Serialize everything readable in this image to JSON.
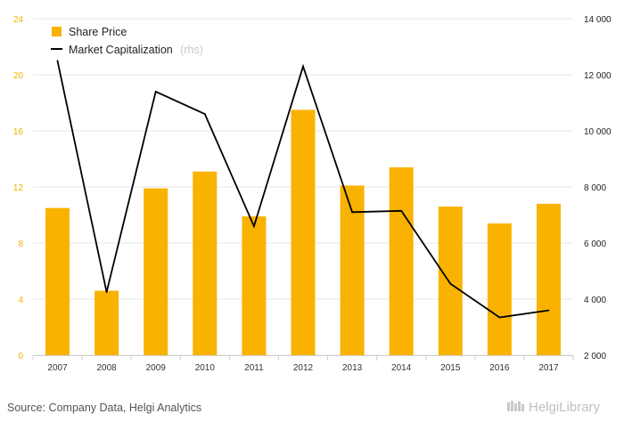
{
  "colors": {
    "bar": "#f9b200",
    "line": "#000000",
    "grid": "#e6e6e6",
    "left_axis_text": "#f2b200",
    "right_axis_text": "#222222"
  },
  "chart_data": {
    "type": "bar",
    "title": "",
    "categories": [
      "2007",
      "2008",
      "2009",
      "2010",
      "2011",
      "2012",
      "2013",
      "2014",
      "2015",
      "2016",
      "2017"
    ],
    "series": [
      {
        "name": "Share Price",
        "type": "bar",
        "axis": "left",
        "values": [
          10.5,
          4.6,
          11.9,
          13.1,
          9.9,
          17.5,
          12.1,
          13.4,
          10.6,
          9.4,
          10.8
        ]
      },
      {
        "name": "Market Capitalization",
        "suffix": "(rhs)",
        "type": "line",
        "axis": "right",
        "values": [
          12500,
          4250,
          11400,
          10600,
          6600,
          12300,
          7100,
          7150,
          4550,
          3350,
          3600
        ]
      }
    ],
    "y_left": {
      "min": 0,
      "max": 24,
      "ticks": [
        "0",
        "4",
        "8",
        "12",
        "16",
        "20",
        "24"
      ]
    },
    "y_right": {
      "min": 2000,
      "max": 14000,
      "ticks": [
        "2 000",
        "4 000",
        "6 000",
        "8 000",
        "10 000",
        "12 000",
        "14 000"
      ]
    },
    "grid": true,
    "legend": "top-left"
  },
  "footer": {
    "source": "Source: Company Data, Helgi Analytics",
    "brand": "HelgiLibrary"
  }
}
